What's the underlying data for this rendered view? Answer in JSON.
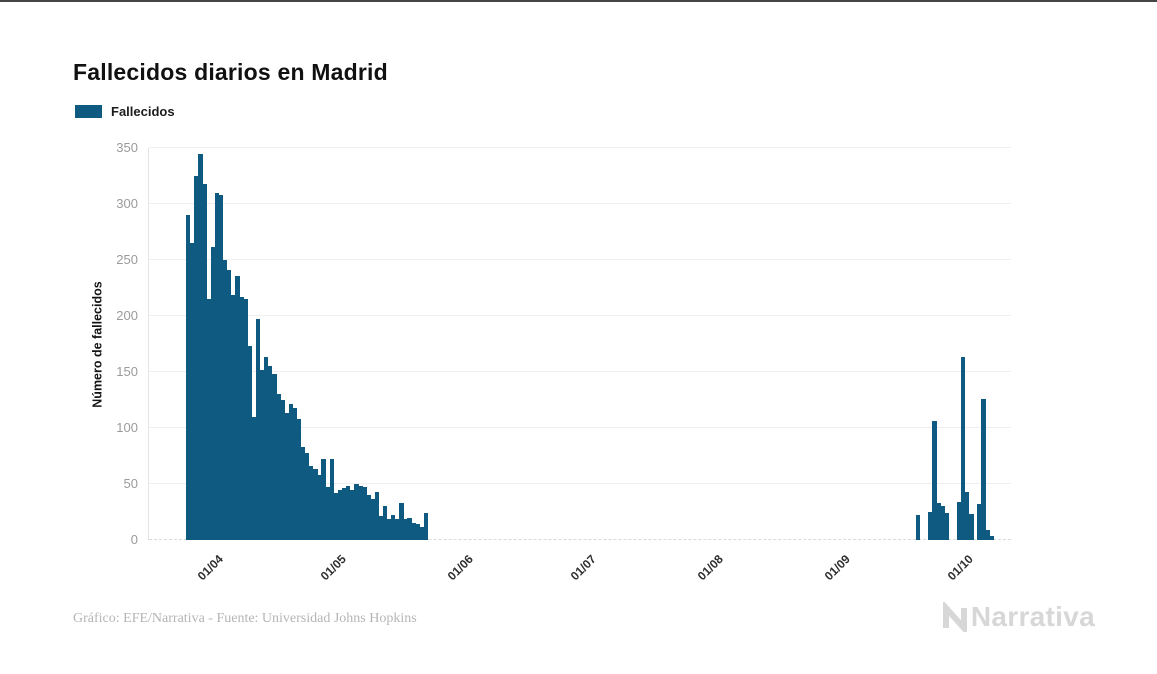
{
  "page": {
    "background": "#ffffff",
    "top_edge_color": "#454545"
  },
  "header": {
    "title": "Fallecidos diarios en Madrid"
  },
  "legend": {
    "label": "Fallecidos",
    "swatch_color": "#0e5a80"
  },
  "footer": {
    "credit": "Gráfico: EFE/Narrativa - Fuente: Universidad Johns Hopkins",
    "logo_text": "Narrativa",
    "logo_color": "#d7d7d7"
  },
  "chart_data": {
    "type": "bar",
    "title": "Fallecidos diarios en Madrid",
    "series_name": "Fallecidos",
    "xlabel": "",
    "ylabel": "Número de fallecidos",
    "ylim": [
      0,
      350
    ],
    "yticks": [
      0,
      50,
      100,
      150,
      200,
      250,
      300,
      350
    ],
    "xticks": [
      "01/04",
      "01/05",
      "01/06",
      "01/07",
      "01/08",
      "01/09",
      "01/10"
    ],
    "tick_day_indices": [
      6,
      36,
      67,
      97,
      128,
      159,
      189
    ],
    "first_bar_date": "26/03",
    "last_bar_date": "08/10",
    "grid": true,
    "legend_position": "top-left",
    "bar_color": "#0e5a80",
    "grid_color": "#efefef",
    "axis_label_color": "#9b9b9b",
    "values": [
      290,
      265,
      325,
      345,
      318,
      215,
      262,
      310,
      308,
      250,
      241,
      219,
      236,
      217,
      215,
      173,
      110,
      197,
      152,
      163,
      155,
      148,
      130,
      125,
      113,
      121,
      118,
      108,
      83,
      78,
      66,
      63,
      58,
      72,
      47,
      72,
      42,
      45,
      46,
      48,
      45,
      50,
      48,
      47,
      40,
      37,
      43,
      21,
      30,
      19,
      22,
      19,
      33,
      19,
      20,
      15,
      14,
      12,
      24,
      0,
      0,
      0,
      0,
      0,
      0,
      0,
      0,
      0,
      0,
      0,
      0,
      0,
      0,
      0,
      0,
      0,
      0,
      0,
      0,
      0,
      0,
      0,
      0,
      0,
      0,
      0,
      0,
      0,
      0,
      0,
      0,
      0,
      0,
      0,
      0,
      0,
      0,
      0,
      0,
      0,
      0,
      0,
      0,
      0,
      0,
      0,
      0,
      0,
      0,
      0,
      0,
      0,
      0,
      0,
      0,
      0,
      0,
      0,
      0,
      0,
      0,
      0,
      0,
      0,
      0,
      0,
      0,
      0,
      0,
      0,
      0,
      0,
      0,
      0,
      0,
      0,
      0,
      0,
      0,
      0,
      0,
      0,
      0,
      0,
      0,
      0,
      0,
      0,
      0,
      0,
      0,
      0,
      0,
      0,
      0,
      0,
      0,
      0,
      0,
      0,
      0,
      0,
      0,
      0,
      0,
      0,
      0,
      0,
      0,
      0,
      0,
      0,
      0,
      0,
      0,
      0,
      0,
      0,
      22,
      0,
      0,
      25,
      106,
      33,
      30,
      24,
      0,
      0,
      34,
      163,
      43,
      23,
      0,
      32,
      126,
      9,
      4
    ]
  }
}
